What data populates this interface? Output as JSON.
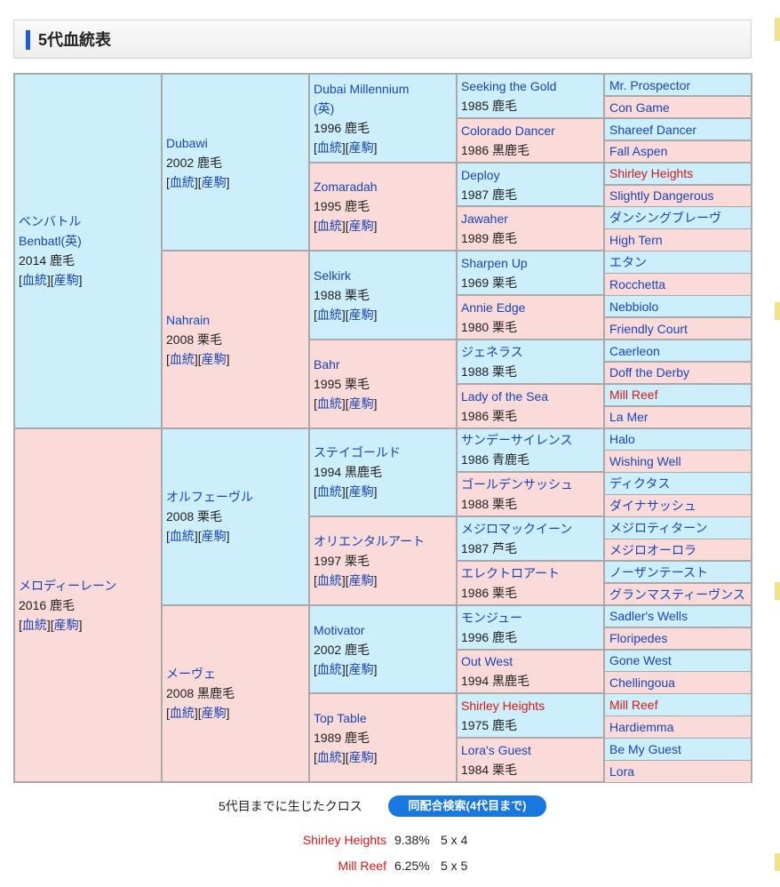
{
  "page": {
    "title": "5代血統表",
    "bracket_open": "[",
    "bracket_sep": "][",
    "bracket_close": "]"
  },
  "pedigree": {
    "gen1": [
      {
        "name": "ベンバトル",
        "name2": "Benbatl(英)",
        "info": "2014 鹿毛",
        "link1": "血統",
        "link2": "産駒"
      },
      {
        "name": "メロディーレーン",
        "info": "2016 鹿毛",
        "link1": "血統",
        "link2": "産駒"
      }
    ],
    "gen2": [
      {
        "name": "Dubawi",
        "info": "2002 鹿毛",
        "link1": "血統",
        "link2": "産駒"
      },
      {
        "name": "Nahrain",
        "info": "2008 栗毛",
        "link1": "血統",
        "link2": "産駒"
      },
      {
        "name": "オルフェーヴル",
        "info": "2008 栗毛",
        "link1": "血統",
        "link2": "産駒"
      },
      {
        "name": "メーヴェ",
        "info": "2008 黒鹿毛",
        "link1": "血統",
        "link2": "産駒"
      }
    ],
    "gen3": [
      {
        "name": "Dubai Millennium",
        "name2": "(英)",
        "info": "1996 鹿毛",
        "link1": "血統",
        "link2": "産駒"
      },
      {
        "name": "Zomaradah",
        "info": "1995 鹿毛",
        "link1": "血統",
        "link2": "産駒"
      },
      {
        "name": "Selkirk",
        "info": "1988 栗毛",
        "link1": "血統",
        "link2": "産駒"
      },
      {
        "name": "Bahr",
        "info": "1995 栗毛",
        "link1": "血統",
        "link2": "産駒"
      },
      {
        "name": "ステイゴールド",
        "info": "1994 黒鹿毛",
        "link1": "血統",
        "link2": "産駒"
      },
      {
        "name": "オリエンタルアート",
        "info": "1997 栗毛",
        "link1": "血統",
        "link2": "産駒"
      },
      {
        "name": "Motivator",
        "info": "2002 鹿毛",
        "link1": "血統",
        "link2": "産駒"
      },
      {
        "name": "Top Table",
        "info": "1989 鹿毛",
        "link1": "血統",
        "link2": "産駒"
      }
    ],
    "gen4": [
      {
        "name": "Seeking the Gold",
        "info": "1985 鹿毛"
      },
      {
        "name": "Colorado Dancer",
        "info": "1986 黒鹿毛"
      },
      {
        "name": "Deploy",
        "info": "1987 鹿毛"
      },
      {
        "name": "Jawaher",
        "info": "1989 鹿毛"
      },
      {
        "name": "Sharpen Up",
        "info": "1969 栗毛"
      },
      {
        "name": "Annie Edge",
        "info": "1980 栗毛"
      },
      {
        "name": "ジェネラス",
        "info": "1988 栗毛"
      },
      {
        "name": "Lady of the Sea",
        "info": "1986 栗毛"
      },
      {
        "name": "サンデーサイレンス",
        "info": "1986 青鹿毛"
      },
      {
        "name": "ゴールデンサッシュ",
        "info": "1988 栗毛"
      },
      {
        "name": "メジロマックイーン",
        "info": "1987 芦毛"
      },
      {
        "name": "エレクトロアート",
        "info": "1986 栗毛"
      },
      {
        "name": "モンジュー",
        "info": "1996 鹿毛"
      },
      {
        "name": "Out West",
        "info": "1994 黒鹿毛"
      },
      {
        "name": "Shirley Heights",
        "info": "1975 鹿毛",
        "red": true
      },
      {
        "name": "Lora's Guest",
        "info": "1984 栗毛"
      }
    ],
    "gen5": [
      {
        "name": "Mr. Prospector"
      },
      {
        "name": "Con Game"
      },
      {
        "name": "Shareef Dancer"
      },
      {
        "name": "Fall Aspen"
      },
      {
        "name": "Shirley Heights",
        "red": true
      },
      {
        "name": "Slightly Dangerous"
      },
      {
        "name": "ダンシングブレーヴ"
      },
      {
        "name": "High Tern"
      },
      {
        "name": "エタン"
      },
      {
        "name": "Rocchetta"
      },
      {
        "name": "Nebbiolo"
      },
      {
        "name": "Friendly Court"
      },
      {
        "name": "Caerleon"
      },
      {
        "name": "Doff the Derby"
      },
      {
        "name": "Mill Reef",
        "red": true
      },
      {
        "name": "La Mer"
      },
      {
        "name": "Halo"
      },
      {
        "name": "Wishing Well"
      },
      {
        "name": "ディクタス"
      },
      {
        "name": "ダイナサッシュ"
      },
      {
        "name": "メジロティターン"
      },
      {
        "name": "メジロオーロラ"
      },
      {
        "name": "ノーザンテースト"
      },
      {
        "name": "グランマスティーヴンス"
      },
      {
        "name": "Sadler's Wells"
      },
      {
        "name": "Floripedes"
      },
      {
        "name": "Gone West"
      },
      {
        "name": "Chellingoua"
      },
      {
        "name": "Mill Reef",
        "red": true
      },
      {
        "name": "Hardiemma"
      },
      {
        "name": "Be My Guest"
      },
      {
        "name": "Lora"
      }
    ]
  },
  "crosses": {
    "label": "5代目までに生じたクロス",
    "button": "同配合検索(4代目まで)",
    "items": [
      {
        "name": "Shirley Heights",
        "percent": "9.38%",
        "ratio": "5 x 4"
      },
      {
        "name": "Mill Reef",
        "percent": "6.25%",
        "ratio": "5 x 5"
      }
    ]
  },
  "colors": {
    "sire_bg": "#cdeefb",
    "dam_bg": "#fbdada",
    "link": "#1a46b3",
    "cross_highlight": "#d21919",
    "button": "#1878e0",
    "header_accent": "#1a5fd1"
  }
}
